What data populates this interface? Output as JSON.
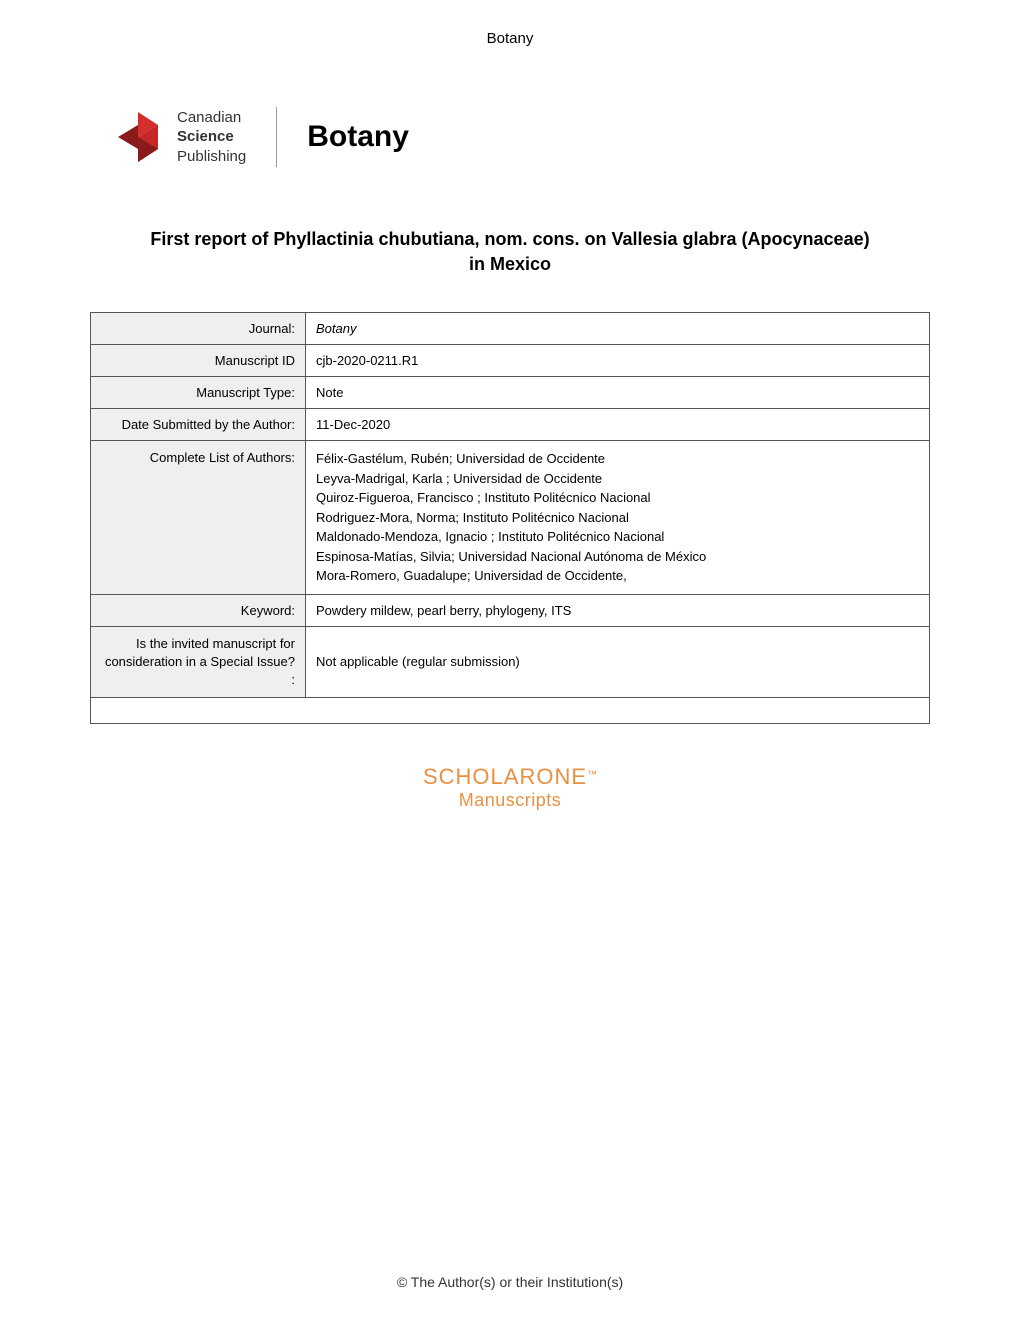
{
  "header": {
    "journal_name": "Botany"
  },
  "logo": {
    "csp_line1": "Canadian",
    "csp_line2": "Science",
    "csp_line3": "Publishing",
    "botany_label": "Botany",
    "icon_colors": {
      "dark_red": "#8b1a1a",
      "red": "#d32f2f",
      "light_red": "#e53935"
    }
  },
  "title": "First report of Phyllactinia chubutiana, nom. cons. on Vallesia glabra (Apocynaceae) in Mexico",
  "metadata": {
    "rows": [
      {
        "label": "Journal:",
        "value": "Botany",
        "italic": true
      },
      {
        "label": "Manuscript ID",
        "value": "cjb-2020-0211.R1"
      },
      {
        "label": "Manuscript Type:",
        "value": "Note"
      },
      {
        "label": "Date Submitted by the Author:",
        "value": "11-Dec-2020"
      },
      {
        "label": "Complete List of Authors:",
        "value": "Félix-Gastélum, Rubén; Universidad de Occidente\nLeyva-Madrigal, Karla ; Universidad de Occidente\nQuiroz-Figueroa, Francisco ; Instituto Politécnico Nacional\nRodriguez-Mora, Norma; Instituto Politécnico Nacional\nMaldonado-Mendoza, Ignacio ; Instituto Politécnico Nacional\nEspinosa-Matías, Silvia; Universidad Nacional Autónoma de México\nMora-Romero, Guadalupe; Universidad de Occidente,",
        "multiline": true
      },
      {
        "label": "Keyword:",
        "value": "Powdery mildew, pearl berry, phylogeny, ITS"
      },
      {
        "label": "Is the invited manuscript for consideration in a Special Issue? :",
        "value": "Not applicable (regular submission)",
        "multiline_label": true
      }
    ]
  },
  "scholarone": {
    "main": "SCHOLARONE",
    "tm": "™",
    "sub": "Manuscripts"
  },
  "footer": "© The Author(s) or their Institution(s)"
}
